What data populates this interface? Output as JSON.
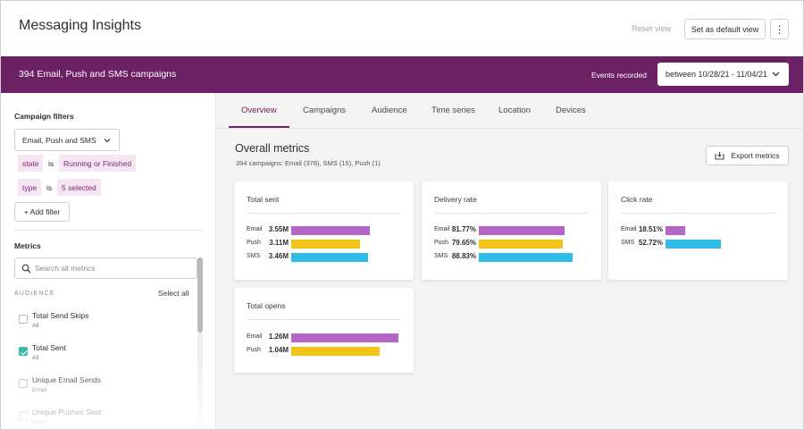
{
  "header": {
    "title": "Messaging Insights",
    "reset_view": "Reset view",
    "set_default": "Set as default view",
    "more_icon": "⋮"
  },
  "banner": {
    "title": "394 Email, Push and SMS campaigns",
    "events_label": "Events recorded",
    "date_range": "between 10/28/21 - 11/04/21",
    "bg_color": "#6c2164"
  },
  "sidebar": {
    "filters_heading": "Campaign filters",
    "channel_select": "Email, Push and SMS",
    "filters": [
      {
        "field": "state",
        "op": "is",
        "value": "Running or Finished"
      },
      {
        "field": "type",
        "op": "is",
        "value": "5 selected"
      }
    ],
    "add_filter": "+ Add filter",
    "metrics_heading": "Metrics",
    "search_placeholder": "Search all metrics",
    "section_label": "AUDIENCE",
    "select_all": "Select all",
    "metrics": [
      {
        "name": "Total Send Skips",
        "sub": "All",
        "checked": false
      },
      {
        "name": "Total Sent",
        "sub": "All",
        "checked": true
      },
      {
        "name": "Unique Email Sends",
        "sub": "Email",
        "checked": false
      },
      {
        "name": "Unique Pushes Sent",
        "sub": "Push",
        "checked": false
      }
    ]
  },
  "tabs": [
    "Overview",
    "Campaigns",
    "Audience",
    "Time series",
    "Location",
    "Devices"
  ],
  "overview": {
    "title": "Overall metrics",
    "subtitle": "394 campaigns: Email (378), SMS (15), Push (1)",
    "export": "Export metrics"
  },
  "colors": {
    "Email": "#b565c8",
    "Push": "#f2c41a",
    "SMS": "#2fbde8",
    "accent": "#6c2164"
  },
  "chart_data": [
    {
      "type": "bar",
      "title": "Total sent",
      "categories": [
        "Email",
        "Push",
        "SMS"
      ],
      "labels": [
        "3.55M",
        "3.11M",
        "3.46M"
      ],
      "values": [
        3.55,
        3.11,
        3.46
      ]
    },
    {
      "type": "bar",
      "title": "Delivery rate",
      "categories": [
        "Email",
        "Push",
        "SMS"
      ],
      "labels": [
        "81.77%",
        "79.65%",
        "88.83%"
      ],
      "values": [
        81.77,
        79.65,
        88.83
      ]
    },
    {
      "type": "bar",
      "title": "Click rate",
      "categories": [
        "Email",
        "SMS"
      ],
      "labels": [
        "18.51%",
        "52.72%"
      ],
      "values": [
        18.51,
        52.72
      ]
    },
    {
      "type": "bar",
      "title": "Total opens",
      "categories": [
        "Email",
        "Push"
      ],
      "labels": [
        "1.26M",
        "1.04M"
      ],
      "values": [
        1.26,
        1.04
      ]
    }
  ]
}
